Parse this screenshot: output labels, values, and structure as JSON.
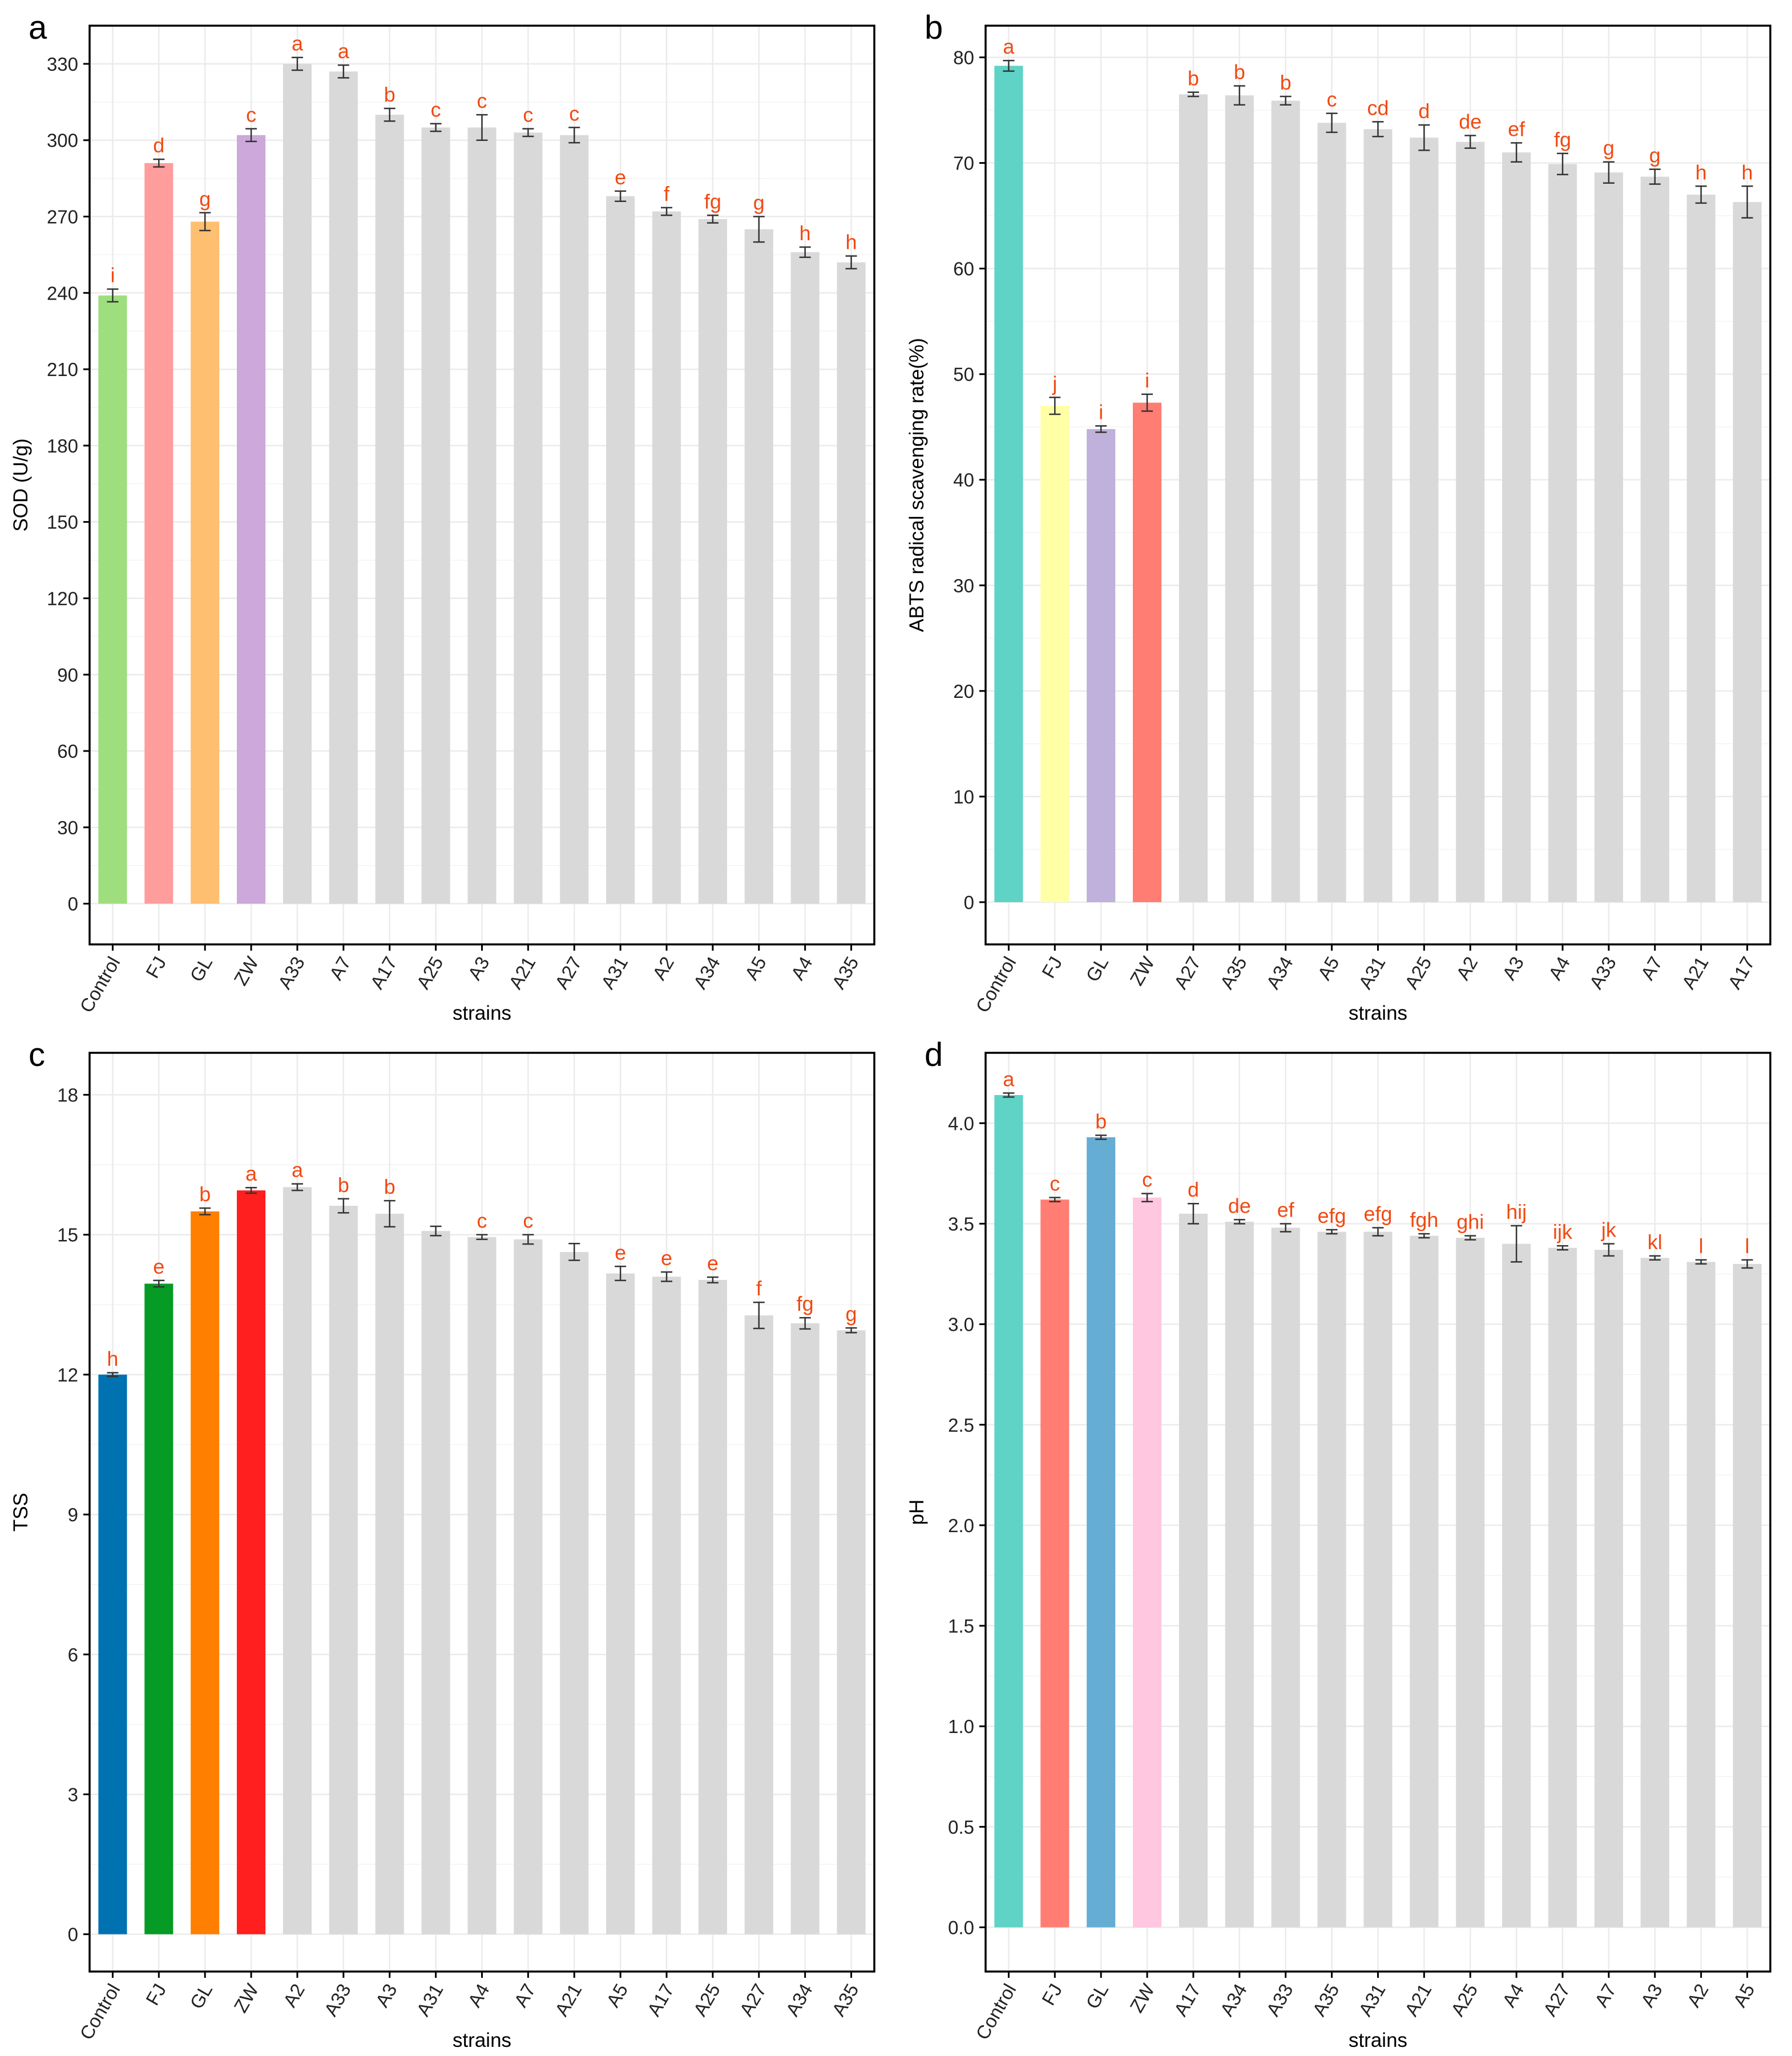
{
  "colors": {
    "letter": "#f04a12",
    "grey_bar": "#d9d9d9",
    "grid": "#ebebeb",
    "axis": "#000000",
    "tick_text": "#222222"
  },
  "chart_data": [
    {
      "panel": "a",
      "type": "bar",
      "xlabel": "strains",
      "ylabel": "SOD (U/g)",
      "ylim": [
        -16,
        345
      ],
      "yticks": [
        0,
        30,
        60,
        90,
        120,
        150,
        180,
        210,
        240,
        270,
        300,
        330
      ],
      "tick_labels": [
        "0",
        "30",
        "60",
        "90",
        "120",
        "150",
        "180",
        "210",
        "240",
        "270",
        "300",
        "330"
      ],
      "categories": [
        "Control",
        "FJ",
        "GL",
        "ZW",
        "A33",
        "A7",
        "A17",
        "A25",
        "A3",
        "A21",
        "A27",
        "A31",
        "A2",
        "A34",
        "A5",
        "A4",
        "A35"
      ],
      "values": [
        239,
        291,
        268,
        302,
        330,
        327,
        310,
        305,
        305,
        303,
        302,
        278,
        272,
        269,
        265,
        256,
        252
      ],
      "errors": [
        2.5,
        1.5,
        3.5,
        2.5,
        2.5,
        2.5,
        2.5,
        1.5,
        5,
        1.5,
        3,
        2,
        1.5,
        1.5,
        5,
        2,
        2.5
      ],
      "letters": [
        "i",
        "d",
        "g",
        "c",
        "a",
        "a",
        "b",
        "c",
        "c",
        "c",
        "c",
        "e",
        "f",
        "fg",
        "g",
        "h",
        "h"
      ],
      "bar_colors": [
        "#9ede7e",
        "#ff9c9c",
        "#ffbf70",
        "#cda8da",
        "#d9d9d9",
        "#d9d9d9",
        "#d9d9d9",
        "#d9d9d9",
        "#d9d9d9",
        "#d9d9d9",
        "#d9d9d9",
        "#d9d9d9",
        "#d9d9d9",
        "#d9d9d9",
        "#d9d9d9",
        "#d9d9d9",
        "#d9d9d9"
      ]
    },
    {
      "panel": "b",
      "type": "bar",
      "xlabel": "strains",
      "ylabel": "ABTS radical scavenging rate(%)",
      "ylim": [
        -4,
        83
      ],
      "yticks": [
        0,
        10,
        20,
        30,
        40,
        50,
        60,
        70,
        80
      ],
      "tick_labels": [
        "0",
        "10",
        "20",
        "30",
        "40",
        "50",
        "60",
        "70",
        "80"
      ],
      "categories": [
        "Control",
        "FJ",
        "GL",
        "ZW",
        "A27",
        "A35",
        "A34",
        "A5",
        "A31",
        "A25",
        "A2",
        "A3",
        "A4",
        "A33",
        "A7",
        "A21",
        "A17"
      ],
      "values": [
        79.2,
        47,
        44.8,
        47.3,
        76.5,
        76.4,
        75.9,
        73.8,
        73.2,
        72.4,
        72,
        71,
        69.9,
        69.1,
        68.7,
        67,
        66.3
      ],
      "errors": [
        0.5,
        0.8,
        0.3,
        0.8,
        0.2,
        0.9,
        0.4,
        0.9,
        0.7,
        1.2,
        0.6,
        0.9,
        1,
        1,
        0.7,
        0.8,
        1.5
      ],
      "letters": [
        "a",
        "j",
        "i",
        "i",
        "b",
        "b",
        "b",
        "c",
        "cd",
        "d",
        "de",
        "ef",
        "fg",
        "g",
        "g",
        "h",
        "h"
      ],
      "bar_colors": [
        "#5fd3c5",
        "#ffffa6",
        "#bfb1db",
        "#ff7d72",
        "#d9d9d9",
        "#d9d9d9",
        "#d9d9d9",
        "#d9d9d9",
        "#d9d9d9",
        "#d9d9d9",
        "#d9d9d9",
        "#d9d9d9",
        "#d9d9d9",
        "#d9d9d9",
        "#d9d9d9",
        "#d9d9d9",
        "#d9d9d9"
      ]
    },
    {
      "panel": "c",
      "type": "bar",
      "xlabel": "strains",
      "ylabel": "TSS",
      "ylim": [
        -0.8,
        18.9
      ],
      "yticks": [
        0,
        3,
        6,
        9,
        12,
        15,
        18
      ],
      "tick_labels": [
        "0",
        "3",
        "6",
        "9",
        "12",
        "15",
        "18"
      ],
      "categories": [
        "Control",
        "FJ",
        "GL",
        "ZW",
        "A2",
        "A33",
        "A3",
        "A31",
        "A4",
        "A7",
        "A21",
        "A5",
        "A17",
        "A25",
        "A27",
        "A34",
        "A35"
      ],
      "values": [
        12,
        13.95,
        15.5,
        15.95,
        16.02,
        15.62,
        15.45,
        15.08,
        14.95,
        14.9,
        14.63,
        14.17,
        14.1,
        14.03,
        13.27,
        13.1,
        12.95
      ],
      "errors": [
        0.04,
        0.07,
        0.07,
        0.06,
        0.07,
        0.15,
        0.28,
        0.1,
        0.05,
        0.1,
        0.18,
        0.15,
        0.1,
        0.06,
        0.28,
        0.12,
        0.05
      ],
      "letters": [
        "h",
        "e",
        "b",
        "a",
        "a",
        "b",
        "b",
        "",
        "c",
        "c",
        "",
        "e",
        "e",
        "e",
        "f",
        "fg",
        "g"
      ],
      "bar_colors": [
        "#0072b2",
        "#069b24",
        "#ff7f00",
        "#ff1f1f",
        "#d9d9d9",
        "#d9d9d9",
        "#d9d9d9",
        "#d9d9d9",
        "#d9d9d9",
        "#d9d9d9",
        "#d9d9d9",
        "#d9d9d9",
        "#d9d9d9",
        "#d9d9d9",
        "#d9d9d9",
        "#d9d9d9",
        "#d9d9d9"
      ]
    },
    {
      "panel": "d",
      "type": "bar",
      "xlabel": "strains",
      "ylabel": "pH",
      "ylim": [
        -0.22,
        4.35
      ],
      "yticks": [
        0,
        0.5,
        1,
        1.5,
        2,
        2.5,
        3,
        3.5,
        4
      ],
      "tick_labels": [
        "0.0",
        "0.5",
        "1.0",
        "1.5",
        "2.0",
        "2.5",
        "3.0",
        "3.5",
        "4.0"
      ],
      "categories": [
        "Control",
        "FJ",
        "GL",
        "ZW",
        "A17",
        "A34",
        "A33",
        "A35",
        "A31",
        "A21",
        "A25",
        "A4",
        "A27",
        "A7",
        "A3",
        "A2",
        "A5"
      ],
      "values": [
        4.14,
        3.62,
        3.93,
        3.63,
        3.55,
        3.51,
        3.48,
        3.46,
        3.46,
        3.44,
        3.43,
        3.4,
        3.38,
        3.37,
        3.33,
        3.31,
        3.3
      ],
      "errors": [
        0.01,
        0.01,
        0.01,
        0.02,
        0.05,
        0.01,
        0.02,
        0.01,
        0.02,
        0.01,
        0.01,
        0.09,
        0.01,
        0.03,
        0.01,
        0.01,
        0.02
      ],
      "letters": [
        "a",
        "c",
        "b",
        "c",
        "d",
        "de",
        "ef",
        "efg",
        "efg",
        "fgh",
        "ghi",
        "hij",
        "ijk",
        "jk",
        "kl",
        "l",
        "l"
      ],
      "bar_colors": [
        "#5fd3c5",
        "#ff7d72",
        "#66add4",
        "#ffc7e0",
        "#d9d9d9",
        "#d9d9d9",
        "#d9d9d9",
        "#d9d9d9",
        "#d9d9d9",
        "#d9d9d9",
        "#d9d9d9",
        "#d9d9d9",
        "#d9d9d9",
        "#d9d9d9",
        "#d9d9d9",
        "#d9d9d9",
        "#d9d9d9"
      ]
    }
  ]
}
